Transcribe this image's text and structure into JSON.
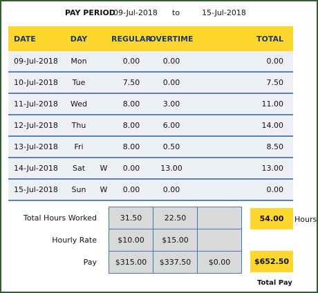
{
  "header": {
    "label": "PAY PERIOD",
    "start": "09-Jul-2018",
    "to": "to",
    "end": "15-Jul-2018"
  },
  "table": {
    "columns": [
      "DATE",
      "DAY",
      "REGULAR",
      "OVERTIME",
      "TOTAL"
    ],
    "rows": [
      {
        "date": "09-Jul-2018",
        "day": "Mon",
        "regular": "0.00",
        "overtime": "0.00",
        "total": "0.00"
      },
      {
        "date": "10-Jul-2018",
        "day": "Tue",
        "regular": "7.50",
        "overtime": "0.00",
        "total": "7.50"
      },
      {
        "date": "11-Jul-2018",
        "day": "Wed",
        "regular": "8.00",
        "overtime": "3.00",
        "total": "11.00"
      },
      {
        "date": "12-Jul-2018",
        "day": "Thu",
        "regular": "8.00",
        "overtime": "6.00",
        "total": "14.00"
      },
      {
        "date": "13-Jul-2018",
        "day": "Fri",
        "regular": "8.00",
        "overtime": "0.50",
        "total": "8.50"
      },
      {
        "date": "14-Jul-2018",
        "day": "Sat",
        "flag": "W",
        "regular": "0.00",
        "overtime": "13.00",
        "total": "13.00"
      },
      {
        "date": "15-Jul-2018",
        "day": "Sun",
        "flag": "W",
        "regular": "0.00",
        "overtime": "0.00",
        "total": "0.00"
      }
    ]
  },
  "summary": {
    "hours": {
      "label": "Total Hours Worked",
      "regular": "31.50",
      "overtime": "22.50",
      "total": "54.00",
      "unit": "Hours"
    },
    "rate": {
      "label": "Hourly Rate",
      "regular": "$10.00",
      "overtime": "$15.00"
    },
    "pay": {
      "label": "Pay",
      "regular": "$315.00",
      "overtime": "$337.50",
      "other": "$0.00",
      "total": "$652.50",
      "total_label": "Total Pay"
    }
  }
}
